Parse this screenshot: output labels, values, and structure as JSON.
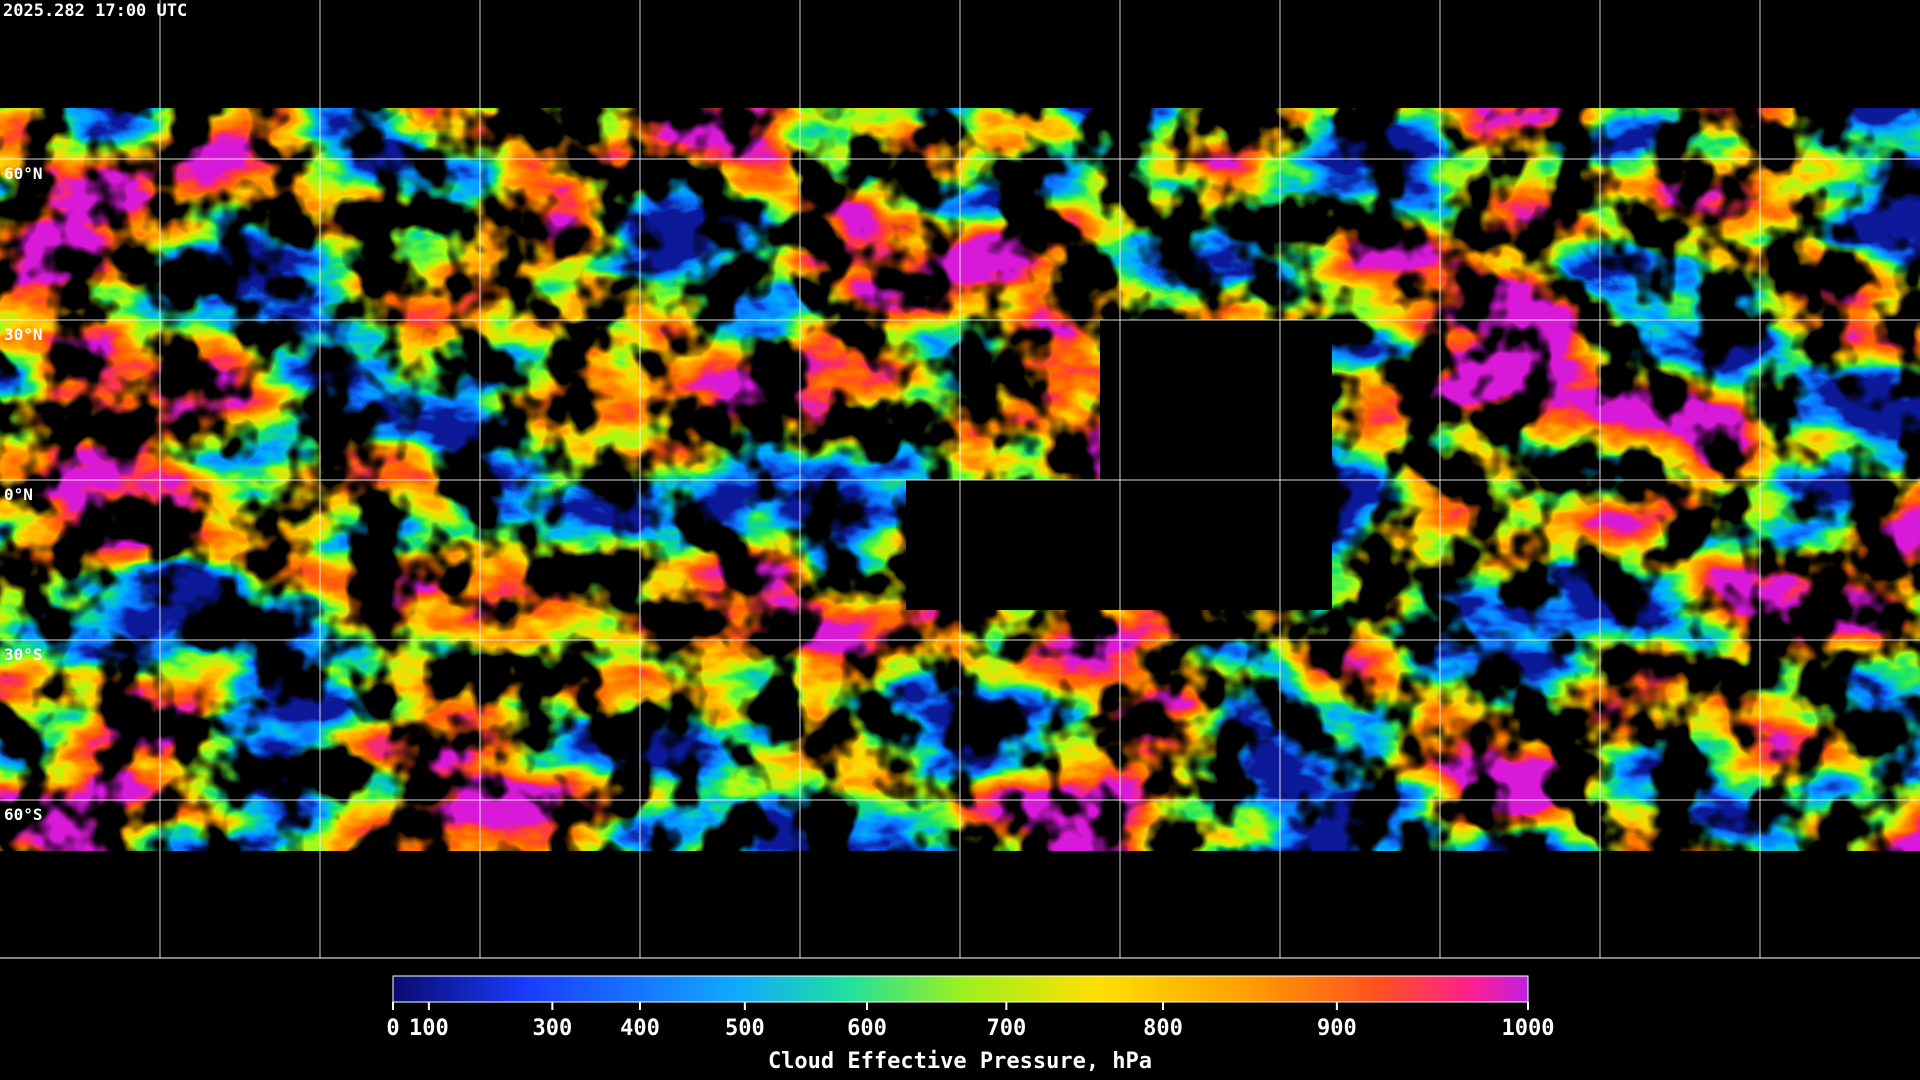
{
  "timestamp": "2025.282 17:00 UTC",
  "latitude_labels": [
    "60°N",
    "30°N",
    "0°N",
    "30°S",
    "60°S"
  ],
  "colorbar": {
    "label": "Cloud Effective Pressure, hPa",
    "range": [
      0,
      1000
    ],
    "ticks": [
      0,
      100,
      300,
      400,
      500,
      600,
      700,
      800,
      900,
      1000
    ]
  }
}
